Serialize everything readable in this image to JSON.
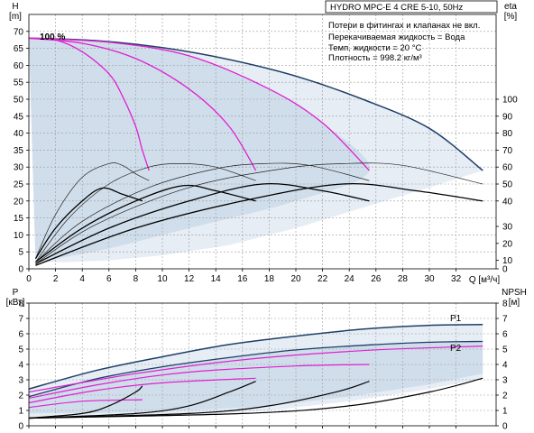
{
  "chart_data": [
    {
      "type": "line",
      "title": "HYDRO MPC-E 4 CRE 5-10, 50Hz",
      "ylabel_left": "H\n[m]",
      "ylabel_right": "eta\n[%]",
      "xlabel": "Q [м³/ч]",
      "xlim": [
        0,
        35
      ],
      "ylim": [
        0,
        75
      ],
      "x_ticks": [
        0,
        2,
        4,
        6,
        8,
        10,
        12,
        14,
        16,
        18,
        20,
        22,
        24,
        26,
        28,
        30,
        32
      ],
      "y_ticks": [
        0,
        5,
        10,
        15,
        20,
        25,
        30,
        35,
        40,
        45,
        50,
        55,
        60,
        65,
        70
      ],
      "eta_ticks": [
        {
          "v": 0,
          "h": 0
        },
        {
          "v": 10,
          "h": 2.5
        },
        {
          "v": 20,
          "h": 7.5
        },
        {
          "v": 30,
          "h": 12.5
        },
        {
          "v": 40,
          "h": 20
        },
        {
          "v": 50,
          "h": 25
        },
        {
          "v": 60,
          "h": 30
        },
        {
          "v": 70,
          "h": 35
        },
        {
          "v": 80,
          "h": 40
        },
        {
          "v": 90,
          "h": 45
        },
        {
          "v": 100,
          "h": 50
        }
      ],
      "grid": true,
      "info_lines": [
        "Потери в фитингах и клапанах не вкл.",
        "Перекачиваемая жидкость = Вода",
        "Темп. жидкости = 20 °C",
        "Плотность = 998.2 кг/м³"
      ],
      "speed_label": "100 %",
      "curves": {
        "envelope_max": [
          [
            0,
            68
          ],
          [
            5,
            67.3
          ],
          [
            10,
            65.2
          ],
          [
            15,
            61.7
          ],
          [
            20,
            56.8
          ],
          [
            25,
            50
          ],
          [
            30,
            41.4
          ],
          [
            34,
            29
          ]
        ],
        "system_1pump": [
          [
            0,
            68
          ],
          [
            2,
            67.5
          ],
          [
            4,
            64
          ],
          [
            6,
            57.5
          ],
          [
            7,
            51
          ],
          [
            8,
            42
          ],
          [
            8.5,
            35
          ],
          [
            9,
            29
          ]
        ],
        "system_2pump": [
          [
            0,
            68
          ],
          [
            4,
            66.5
          ],
          [
            8,
            62
          ],
          [
            12,
            53
          ],
          [
            15,
            42
          ],
          [
            17,
            29
          ]
        ],
        "system_3pump": [
          [
            0,
            68
          ],
          [
            6,
            66.8
          ],
          [
            12,
            62.8
          ],
          [
            18,
            53
          ],
          [
            22,
            43
          ],
          [
            25.5,
            29
          ]
        ],
        "eta_1": [
          [
            0.5,
            3
          ],
          [
            2,
            16
          ],
          [
            4,
            27
          ],
          [
            6,
            31
          ],
          [
            7,
            30.5
          ],
          [
            8,
            28
          ],
          [
            9,
            26
          ]
        ],
        "eta_2": [
          [
            0.5,
            2
          ],
          [
            3,
            15
          ],
          [
            6,
            25
          ],
          [
            9,
            30
          ],
          [
            11.5,
            31
          ],
          [
            14,
            30
          ],
          [
            17,
            26
          ]
        ],
        "eta_3": [
          [
            0.5,
            2
          ],
          [
            4,
            14
          ],
          [
            9,
            24
          ],
          [
            14,
            29.5
          ],
          [
            17.5,
            31
          ],
          [
            21,
            30.5
          ],
          [
            25.5,
            26
          ]
        ],
        "eta_4": [
          [
            0.5,
            1.5
          ],
          [
            5,
            13
          ],
          [
            12,
            24
          ],
          [
            19,
            29.5
          ],
          [
            23.5,
            31
          ],
          [
            28,
            30.5
          ],
          [
            34,
            25
          ]
        ],
        "qh_1": [
          [
            0.5,
            3
          ],
          [
            2,
            12
          ],
          [
            4,
            20
          ],
          [
            5.5,
            23.8
          ],
          [
            7,
            22
          ],
          [
            8.5,
            20
          ]
        ],
        "qh_2": [
          [
            0.5,
            2
          ],
          [
            4,
            12
          ],
          [
            8,
            20
          ],
          [
            11.5,
            24.5
          ],
          [
            14,
            23
          ],
          [
            17,
            20
          ]
        ],
        "qh_3": [
          [
            0.5,
            1.5
          ],
          [
            6,
            12
          ],
          [
            12,
            20
          ],
          [
            17.5,
            25
          ],
          [
            22,
            23
          ],
          [
            25.5,
            20
          ]
        ],
        "qh_4": [
          [
            0.5,
            1
          ],
          [
            8,
            12
          ],
          [
            16,
            20
          ],
          [
            23.5,
            25
          ],
          [
            29,
            23
          ],
          [
            34,
            20
          ]
        ]
      }
    },
    {
      "type": "line",
      "ylabel_left": "P\n[кВт]",
      "ylabel_right": "NPSH\n[м]",
      "xlim": [
        0,
        35
      ],
      "ylim": [
        0,
        8
      ],
      "y_ticks": [
        0,
        1,
        2,
        3,
        4,
        5,
        6,
        7,
        8
      ],
      "grid": true,
      "series_labels": [
        "P1",
        "P2"
      ],
      "curves": {
        "P1": [
          [
            0,
            2.4
          ],
          [
            5,
            3.6
          ],
          [
            10,
            4.5
          ],
          [
            15,
            5.3
          ],
          [
            20,
            5.85
          ],
          [
            25,
            6.3
          ],
          [
            30,
            6.55
          ],
          [
            34,
            6.6
          ]
        ],
        "P2": [
          [
            0,
            1.9
          ],
          [
            5,
            3.05
          ],
          [
            10,
            3.85
          ],
          [
            15,
            4.45
          ],
          [
            20,
            4.95
          ],
          [
            25,
            5.25
          ],
          [
            30,
            5.45
          ],
          [
            34,
            5.5
          ]
        ],
        "p_pink_1": [
          [
            0,
            1.2
          ],
          [
            4,
            1.6
          ],
          [
            8.5,
            1.7
          ]
        ],
        "p_pink_2": [
          [
            0,
            1.5
          ],
          [
            5,
            2.3
          ],
          [
            10,
            2.8
          ],
          [
            17,
            3.1
          ]
        ],
        "p_pink_3": [
          [
            0,
            1.8
          ],
          [
            6,
            2.8
          ],
          [
            12,
            3.5
          ],
          [
            20,
            3.9
          ],
          [
            25.5,
            4.0
          ]
        ],
        "p_pink_4": [
          [
            0,
            2.2
          ],
          [
            8,
            3.4
          ],
          [
            16,
            4.3
          ],
          [
            25,
            4.9
          ],
          [
            34,
            5.2
          ]
        ],
        "npsh_1": [
          [
            0,
            0.5
          ],
          [
            4,
            0.8
          ],
          [
            6,
            1.3
          ],
          [
            8,
            2.2
          ],
          [
            8.5,
            2.6
          ]
        ],
        "npsh_2": [
          [
            0,
            0.5
          ],
          [
            8,
            0.8
          ],
          [
            12,
            1.3
          ],
          [
            15,
            2.2
          ],
          [
            17,
            2.9
          ]
        ],
        "npsh_3": [
          [
            0,
            0.5
          ],
          [
            12,
            0.8
          ],
          [
            18,
            1.3
          ],
          [
            23,
            2.2
          ],
          [
            25.5,
            2.9
          ]
        ],
        "npsh_4": [
          [
            0,
            0.5
          ],
          [
            16,
            0.8
          ],
          [
            24,
            1.3
          ],
          [
            30,
            2.2
          ],
          [
            34,
            3.1
          ]
        ]
      }
    }
  ],
  "colors": {
    "envelope": "#1f3f66",
    "fill_light": "#e6edf5",
    "fill_dark": "#cbd9e8",
    "pink": "#e020d0",
    "black": "#000000",
    "grid": "#9a9a9a"
  }
}
